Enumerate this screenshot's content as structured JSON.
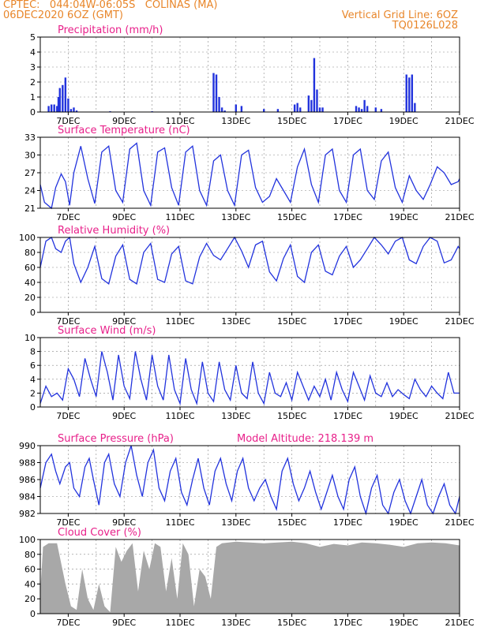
{
  "header": {
    "left_line1": "CPTEC:   044:04W-06:05S   COLINAS (MA)",
    "left_line2": "06DEC2020 6OZ (GMT)",
    "right_line1": "Vertical Grid Line: 6OZ",
    "right_line2": "TQ0126L028"
  },
  "x_ticks": [
    "7DEC",
    "9DEC",
    "11DEC",
    "13DEC",
    "15DEC",
    "17DEC",
    "19DEC",
    "21DEC"
  ],
  "colors": {
    "title": "#e8208a",
    "header": "#e8862a",
    "line": "#2233dd",
    "bars": "#2233dd",
    "cloud": "#a8a8a8"
  },
  "chart_data": [
    {
      "type": "bar",
      "title": "Precipitation (mm/h)",
      "ylim": [
        0,
        5
      ],
      "yticks": [
        "0",
        "1",
        "2",
        "3",
        "4",
        "5"
      ],
      "x": [
        0.3,
        0.4,
        0.5,
        0.6,
        0.65,
        0.7,
        0.8,
        0.9,
        1.0,
        1.1,
        1.2,
        1.3,
        2.5,
        4.0,
        6.2,
        6.3,
        6.4,
        6.5,
        6.6,
        7.0,
        7.2,
        8.0,
        8.5,
        9.1,
        9.2,
        9.3,
        9.6,
        9.7,
        9.8,
        9.9,
        10.0,
        10.1,
        11.3,
        11.4,
        11.5,
        11.6,
        11.7,
        12.0,
        12.2,
        13.1,
        13.2,
        13.3,
        13.4
      ],
      "values": [
        0.4,
        0.5,
        0.5,
        0.4,
        1.0,
        1.6,
        1.8,
        2.3,
        0.9,
        0.2,
        0.3,
        0.1,
        0.05,
        0.05,
        2.6,
        2.5,
        1.0,
        0.3,
        0.1,
        0.5,
        0.4,
        0.2,
        0.2,
        0.5,
        0.6,
        0.3,
        1.1,
        0.8,
        3.6,
        1.5,
        0.3,
        0.3,
        0.4,
        0.3,
        0.2,
        0.8,
        0.4,
        0.3,
        0.2,
        2.5,
        2.3,
        2.5,
        0.6
      ]
    },
    {
      "type": "line",
      "title": "Surface Temperature (nC)",
      "ylim": [
        21,
        33
      ],
      "yticks": [
        "21",
        "24",
        "27",
        "30",
        "33"
      ],
      "x": [
        0,
        0.15,
        0.4,
        0.55,
        0.75,
        0.9,
        1.05,
        1.2,
        1.45,
        1.7,
        1.95,
        2.2,
        2.45,
        2.7,
        2.95,
        3.2,
        3.45,
        3.7,
        3.95,
        4.2,
        4.45,
        4.7,
        4.95,
        5.2,
        5.45,
        5.7,
        5.95,
        6.2,
        6.45,
        6.7,
        6.95,
        7.2,
        7.45,
        7.7,
        7.95,
        8.2,
        8.45,
        8.7,
        8.95,
        9.2,
        9.45,
        9.7,
        9.95,
        10.2,
        10.45,
        10.7,
        10.95,
        11.2,
        11.45,
        11.7,
        11.95,
        12.2,
        12.45,
        12.7,
        12.95,
        13.2,
        13.45,
        13.7,
        13.95,
        14.2,
        14.45,
        14.7,
        14.95,
        15
      ],
      "values": [
        25,
        22,
        21,
        24.5,
        26.8,
        25.5,
        21.5,
        27,
        31.5,
        26,
        21.8,
        30.5,
        31.5,
        24,
        22,
        31,
        32,
        24,
        21.5,
        30.5,
        31.2,
        24.5,
        21.5,
        30.5,
        31.5,
        24,
        21.5,
        29,
        30,
        24,
        21.5,
        30,
        30.8,
        24.5,
        22,
        23,
        26,
        24,
        22,
        28,
        31,
        25,
        22,
        30,
        31,
        24,
        22,
        30,
        31,
        24,
        22.5,
        29,
        30.5,
        24.5,
        22,
        26.5,
        24,
        22.5,
        25,
        28,
        27,
        25,
        25.5,
        26
      ]
    },
    {
      "type": "line",
      "title": "Relative Humidity (%)",
      "ylim": [
        0,
        100
      ],
      "yticks": [
        "0",
        "20",
        "40",
        "60",
        "80",
        "100"
      ],
      "x": [
        0,
        0.2,
        0.4,
        0.55,
        0.75,
        0.9,
        1.05,
        1.2,
        1.45,
        1.7,
        1.95,
        2.2,
        2.45,
        2.7,
        2.95,
        3.2,
        3.45,
        3.7,
        3.95,
        4.2,
        4.45,
        4.7,
        4.95,
        5.2,
        5.45,
        5.7,
        5.95,
        6.2,
        6.45,
        6.7,
        6.95,
        7.2,
        7.45,
        7.7,
        7.95,
        8.2,
        8.45,
        8.7,
        8.95,
        9.2,
        9.45,
        9.7,
        9.95,
        10.2,
        10.45,
        10.7,
        10.95,
        11.2,
        11.45,
        11.7,
        11.95,
        12.2,
        12.45,
        12.7,
        12.95,
        13.2,
        13.45,
        13.7,
        13.95,
        14.2,
        14.45,
        14.7,
        14.95,
        15
      ],
      "values": [
        60,
        95,
        100,
        85,
        80,
        95,
        100,
        65,
        40,
        60,
        88,
        45,
        38,
        75,
        90,
        44,
        38,
        80,
        92,
        44,
        40,
        78,
        88,
        42,
        38,
        74,
        92,
        76,
        70,
        85,
        100,
        82,
        60,
        90,
        95,
        54,
        42,
        72,
        90,
        48,
        40,
        80,
        90,
        55,
        50,
        75,
        88,
        60,
        70,
        85,
        100,
        90,
        78,
        95,
        100,
        70,
        65,
        88,
        100,
        95,
        66,
        70,
        88,
        85
      ]
    },
    {
      "type": "line",
      "title": "Surface Wind (m/s)",
      "ylim": [
        0,
        10
      ],
      "yticks": [
        "0",
        "2",
        "4",
        "6",
        "8",
        "10"
      ],
      "x": [
        0,
        0.2,
        0.4,
        0.6,
        0.8,
        1.0,
        1.2,
        1.4,
        1.6,
        1.8,
        2.0,
        2.2,
        2.4,
        2.6,
        2.8,
        3.0,
        3.2,
        3.4,
        3.6,
        3.8,
        4.0,
        4.2,
        4.4,
        4.6,
        4.8,
        5.0,
        5.2,
        5.4,
        5.6,
        5.8,
        6.0,
        6.2,
        6.4,
        6.6,
        6.8,
        7.0,
        7.2,
        7.4,
        7.6,
        7.8,
        8.0,
        8.2,
        8.4,
        8.6,
        8.8,
        9.0,
        9.2,
        9.4,
        9.6,
        9.8,
        10.0,
        10.2,
        10.4,
        10.6,
        10.8,
        11.0,
        11.2,
        11.4,
        11.6,
        11.8,
        12.0,
        12.2,
        12.4,
        12.6,
        12.8,
        13.0,
        13.2,
        13.4,
        13.6,
        13.8,
        14.0,
        14.2,
        14.4,
        14.6,
        14.8,
        15
      ],
      "values": [
        0.5,
        3,
        1.5,
        2,
        1,
        5.5,
        4,
        1.5,
        7,
        4,
        1.5,
        8,
        5,
        1,
        7.5,
        3,
        1.2,
        8,
        4,
        1,
        7.5,
        3,
        1,
        7.5,
        2.5,
        0.5,
        7,
        2.5,
        0.5,
        6.5,
        2,
        0.8,
        6.5,
        2.5,
        1,
        6,
        2,
        1.2,
        6.5,
        2,
        0.5,
        5,
        2,
        1.5,
        3.5,
        1,
        5,
        3,
        1,
        3,
        1.5,
        4,
        1,
        5,
        2.5,
        0.8,
        5,
        3,
        1,
        4.5,
        2,
        1.5,
        3.5,
        1.5,
        2.5,
        1.8,
        1.2,
        4,
        2.5,
        1.5,
        3,
        2,
        1.2,
        5,
        2,
        2
      ]
    },
    {
      "type": "line",
      "title": "Surface Pressure (hPa)",
      "annotation": "Model Altitude: 218.139  m",
      "ylim": [
        982,
        990
      ],
      "yticks": [
        "982",
        "984",
        "986",
        "988",
        "990"
      ],
      "x": [
        0,
        0.2,
        0.4,
        0.55,
        0.7,
        0.9,
        1.05,
        1.2,
        1.4,
        1.6,
        1.75,
        1.9,
        2.1,
        2.3,
        2.45,
        2.65,
        2.85,
        3.05,
        3.25,
        3.45,
        3.65,
        3.85,
        4.05,
        4.25,
        4.45,
        4.65,
        4.85,
        5.05,
        5.25,
        5.45,
        5.65,
        5.85,
        6.05,
        6.25,
        6.45,
        6.65,
        6.85,
        7.05,
        7.25,
        7.45,
        7.65,
        7.85,
        8.05,
        8.25,
        8.45,
        8.65,
        8.85,
        9.05,
        9.25,
        9.45,
        9.65,
        9.85,
        10.05,
        10.25,
        10.45,
        10.65,
        10.85,
        11.05,
        11.25,
        11.45,
        11.65,
        11.85,
        12.05,
        12.25,
        12.45,
        12.65,
        12.85,
        13.05,
        13.25,
        13.45,
        13.65,
        13.85,
        14.05,
        14.25,
        14.45,
        14.65,
        14.85,
        15
      ],
      "values": [
        985,
        988,
        989,
        987,
        985.5,
        987.5,
        988,
        985,
        984,
        987.5,
        988.5,
        986,
        983,
        988,
        989,
        985.5,
        984,
        988,
        990,
        986.5,
        984,
        988,
        989.5,
        985,
        983.5,
        987,
        988.5,
        984.5,
        983,
        986,
        988.5,
        985,
        983,
        987,
        988.5,
        985.5,
        983.5,
        987,
        988.5,
        985,
        983.5,
        985,
        986,
        984,
        982.5,
        987,
        988.5,
        985.5,
        983.5,
        985,
        987,
        984.5,
        982.5,
        984.5,
        986.5,
        984,
        982.5,
        986,
        987.5,
        984,
        982,
        985,
        986.5,
        983,
        982,
        984.5,
        986,
        983.5,
        982,
        984,
        986,
        983,
        982,
        984,
        985.5,
        983,
        982,
        984
      ]
    },
    {
      "type": "area",
      "title": "Cloud Cover (%)",
      "ylim": [
        0,
        100
      ],
      "yticks": [
        "0",
        "20",
        "40",
        "60",
        "80",
        "100"
      ],
      "x": [
        0,
        0.1,
        0.3,
        0.6,
        0.9,
        1.1,
        1.3,
        1.5,
        1.7,
        1.9,
        2.1,
        2.3,
        2.5,
        2.7,
        2.9,
        3.1,
        3.3,
        3.5,
        3.7,
        3.9,
        4.1,
        4.3,
        4.5,
        4.7,
        4.9,
        5.1,
        5.3,
        5.5,
        5.7,
        5.9,
        6.1,
        6.3,
        6.5,
        7.0,
        7.5,
        8.0,
        8.5,
        9.0,
        9.5,
        10.0,
        10.5,
        11.0,
        11.5,
        12.0,
        12.5,
        13.0,
        13.5,
        14.0,
        14.5,
        15
      ],
      "values": [
        30,
        90,
        95,
        95,
        40,
        10,
        5,
        60,
        20,
        5,
        40,
        10,
        2,
        90,
        70,
        85,
        95,
        30,
        85,
        60,
        95,
        90,
        30,
        75,
        20,
        95,
        80,
        10,
        60,
        50,
        20,
        90,
        95,
        97,
        96,
        95,
        96,
        97,
        95,
        90,
        94,
        92,
        96,
        95,
        93,
        90,
        95,
        96,
        95,
        92
      ]
    }
  ]
}
